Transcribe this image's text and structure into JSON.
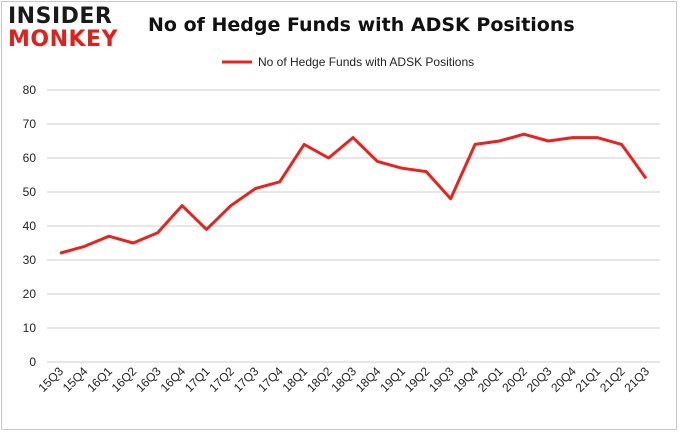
{
  "logo": {
    "line1": "INSIDER",
    "line2": "MONKEY"
  },
  "chart_data": {
    "type": "line",
    "title": "No of Hedge Funds with ADSK Positions",
    "xlabel": "",
    "ylabel": "",
    "categories": [
      "15Q3",
      "15Q4",
      "16Q1",
      "16Q2",
      "16Q3",
      "16Q4",
      "17Q1",
      "17Q2",
      "17Q3",
      "17Q4",
      "18Q1",
      "18Q2",
      "18Q3",
      "18Q4",
      "19Q1",
      "19Q2",
      "19Q3",
      "19Q4",
      "20Q1",
      "20Q2",
      "20Q3",
      "20Q4",
      "21Q1",
      "21Q2",
      "21Q3"
    ],
    "series": [
      {
        "name": "No of Hedge Funds with ADSK Positions",
        "color": "#e8231e",
        "values": [
          32,
          34,
          37,
          35,
          38,
          46,
          39,
          46,
          51,
          53,
          64,
          60,
          66,
          59,
          57,
          56,
          48,
          64,
          65,
          67,
          65,
          66,
          66,
          64,
          54
        ]
      }
    ],
    "ylim": [
      0,
      80
    ],
    "yticks": [
      0,
      10,
      20,
      30,
      40,
      50,
      60,
      70,
      80
    ],
    "grid": true,
    "legend": "top-center"
  }
}
